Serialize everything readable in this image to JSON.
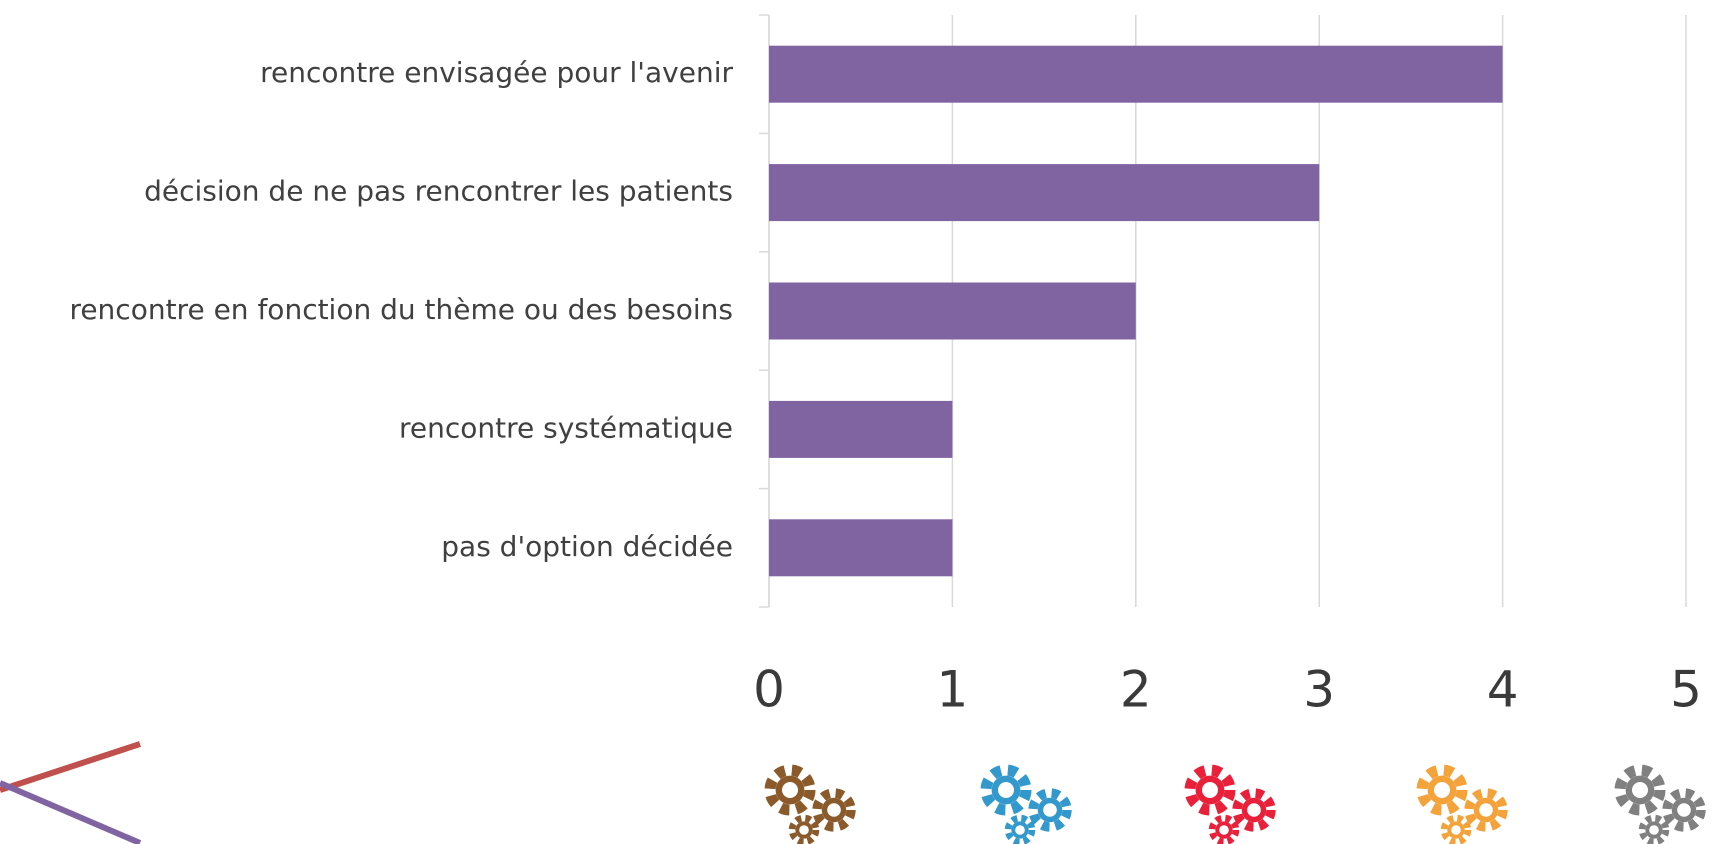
{
  "chart_data": {
    "type": "bar",
    "orientation": "horizontal",
    "categories": [
      "rencontre envisagée pour l'avenir",
      "décision de ne pas rencontrer les patients",
      "rencontre en fonction du thème ou des besoins",
      "rencontre systématique",
      "pas d'option décidée"
    ],
    "values": [
      4,
      3,
      2,
      1,
      1
    ],
    "color": "#8064a2",
    "xlim": [
      0,
      5
    ],
    "xticks": [
      0,
      1,
      2,
      3,
      4,
      5
    ],
    "grid": true
  }
}
